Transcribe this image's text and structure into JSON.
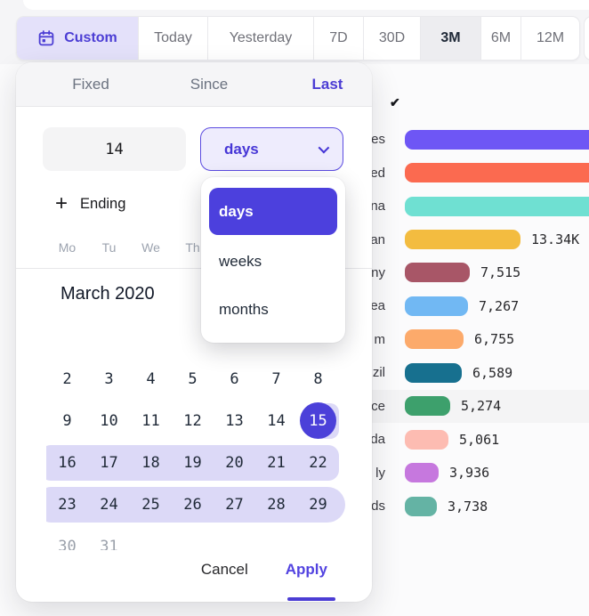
{
  "toolbar": {
    "items": [
      {
        "label": "Custom",
        "icon": "calendar-icon",
        "accent": true
      },
      {
        "label": "Today"
      },
      {
        "label": "Yesterday"
      },
      {
        "label": "7D"
      },
      {
        "label": "30D"
      },
      {
        "label": "3M",
        "active": true
      },
      {
        "label": "6M"
      },
      {
        "label": "12M"
      }
    ]
  },
  "popover": {
    "tabs": [
      {
        "label": "Fixed",
        "active": false
      },
      {
        "label": "Since",
        "active": false
      },
      {
        "label": "Last",
        "active": true
      }
    ],
    "count_value": "14",
    "unit_select": {
      "value": "days",
      "options": [
        "days",
        "weeks",
        "months"
      ],
      "selected": "days"
    },
    "ending_label": "Ending",
    "plus_glyph": "+",
    "calendar": {
      "title": "March 2020",
      "weekdays_visible": [
        "Mo",
        "Tu",
        "We",
        "Th"
      ],
      "weeks": [
        {
          "days": [
            2,
            3,
            4,
            5,
            6,
            7,
            8
          ]
        },
        {
          "days": [
            9,
            10,
            11,
            12,
            13,
            14,
            15
          ],
          "band": "start",
          "selected_day": 15
        },
        {
          "days": [
            16,
            17,
            18,
            19,
            20,
            21,
            22
          ],
          "band": "mid"
        },
        {
          "days": [
            23,
            24,
            25,
            26,
            27,
            28,
            29
          ],
          "band": "end"
        },
        {
          "days": [
            30,
            31
          ],
          "muted": true
        }
      ],
      "selected_day": 15,
      "range_highlight": "16-29"
    },
    "cancel_label": "Cancel",
    "apply_label": "Apply"
  },
  "background": {
    "checkmark_glyph": "✔"
  },
  "chart_data": {
    "type": "bar",
    "orientation": "horizontal",
    "note": "country breakdown; left part of labels hidden behind the date-range popover, top three bars run off the right edge so their values are not visible",
    "rows": [
      {
        "label": "es",
        "color": "#6e56f5",
        "value": null,
        "value_label": null,
        "clipped": true
      },
      {
        "label": "ed",
        "color": "#fb6a50",
        "value": null,
        "value_label": null,
        "clipped": true
      },
      {
        "label": "na",
        "color": "#6fe0d2",
        "value": null,
        "value_label": null,
        "clipped": true
      },
      {
        "label": "an",
        "color": "#f3bc40",
        "value": 13340,
        "value_label": "13.34K"
      },
      {
        "label": "ny",
        "color": "#a85667",
        "value": 7515,
        "value_label": "7,515"
      },
      {
        "label": "ea",
        "color": "#71b8f3",
        "value": 7267,
        "value_label": "7,267"
      },
      {
        "label": "m",
        "color": "#fcaa6b",
        "value": 6755,
        "value_label": "6,755"
      },
      {
        "label": "zil",
        "color": "#17708f",
        "value": 6589,
        "value_label": "6,589"
      },
      {
        "label": "ce",
        "color": "#3da06c",
        "value": 5274,
        "value_label": "5,274",
        "highlighted": true
      },
      {
        "label": "da",
        "color": "#fdbcb2",
        "value": 5061,
        "value_label": "5,061"
      },
      {
        "label": "ly",
        "color": "#c678de",
        "value": 3936,
        "value_label": "3,936"
      },
      {
        "label": "ds",
        "color": "#64b3a4",
        "value": 3738,
        "value_label": "3,738"
      }
    ]
  },
  "colors": {
    "accent": "#4b3dd4",
    "accent_fill": "#4c40dd",
    "accent_light": "#e4e1fa",
    "range_band": "#dcd9f7",
    "select_bg": "#eeecfd",
    "row_highlight": "#f4f4f5",
    "header_bg": "#f5f5f7"
  }
}
